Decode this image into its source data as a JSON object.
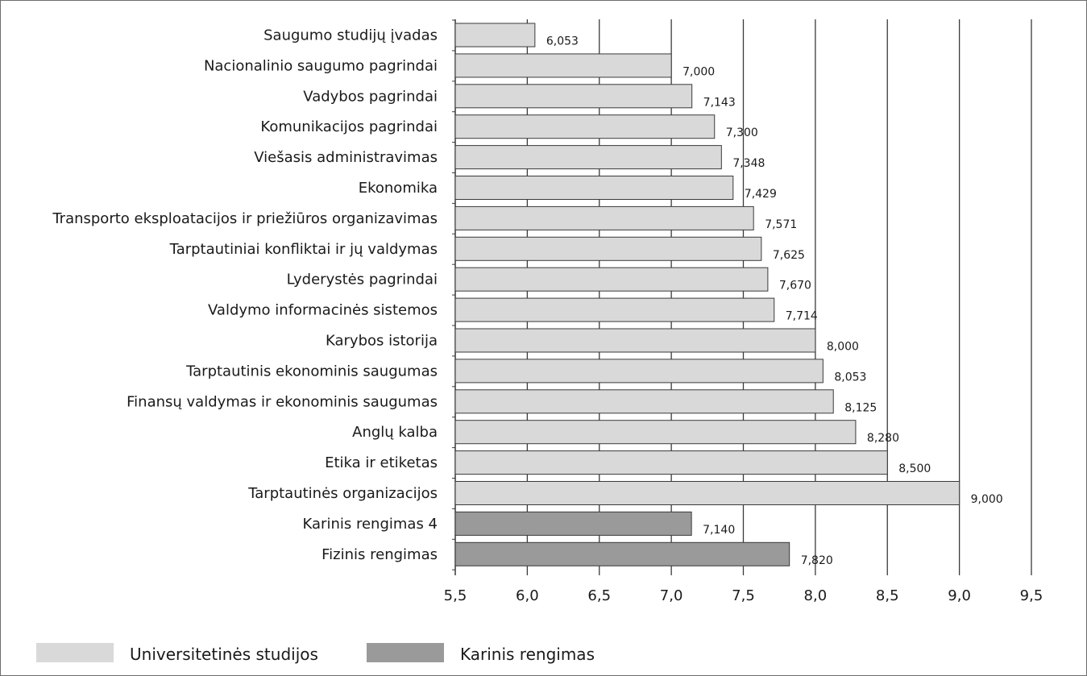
{
  "chart_data": {
    "type": "bar",
    "orientation": "horizontal",
    "title": "",
    "xlabel": "",
    "ylabel": "",
    "xlim": [
      5.5,
      9.5
    ],
    "xticks": [
      "5,5",
      "6,0",
      "6,5",
      "7,0",
      "7,5",
      "8,0",
      "8,5",
      "9,0",
      "9,5"
    ],
    "grid": "vertical",
    "legend_position": "bottom-left",
    "categories": [
      "Saugumo studijų įvadas",
      "Nacionalinio saugumo pagrindai",
      "Vadybos pagrindai",
      "Komunikacijos pagrindai",
      "Viešasis administravimas",
      "Ekonomika",
      "Transporto eksploatacijos ir priežiūros organizavimas",
      "Tarptautiniai konfliktai ir jų valdymas",
      "Lyderystės pagrindai",
      "Valdymo informacinės sistemos",
      "Karybos istorija",
      "Tarptautinis ekonominis saugumas",
      "Finansų valdymas ir ekonominis saugumas",
      "Anglų kalba",
      "Etika ir etiketas",
      "Tarptautinės organizacijos",
      "Karinis rengimas 4",
      "Fizinis rengimas"
    ],
    "values": [
      6.053,
      7.0,
      7.143,
      7.3,
      7.348,
      7.429,
      7.571,
      7.625,
      7.67,
      7.714,
      8.0,
      8.053,
      8.125,
      8.28,
      8.5,
      9.0,
      7.14,
      7.82
    ],
    "value_labels": [
      "6,053",
      "7,000",
      "7,143",
      "7,300",
      "7,348",
      "7,429",
      "7,571",
      "7,625",
      "7,670",
      "7,714",
      "8,000",
      "8,053",
      "8,125",
      "8,280",
      "8,500",
      "9,000",
      "7,140",
      "7,820"
    ],
    "groups": [
      "Universitetinės studijos",
      "Universitetinės studijos",
      "Universitetinės studijos",
      "Universitetinės studijos",
      "Universitetinės studijos",
      "Universitetinės studijos",
      "Universitetinės studijos",
      "Universitetinės studijos",
      "Universitetinės studijos",
      "Universitetinės studijos",
      "Universitetinės studijos",
      "Universitetinės studijos",
      "Universitetinės studijos",
      "Universitetinės studijos",
      "Universitetinės studijos",
      "Universitetinės studijos",
      "Karinis rengimas",
      "Karinis rengimas"
    ],
    "legend": [
      {
        "name": "Universitetinės studijos",
        "color": "#d9d9d9"
      },
      {
        "name": "Karinis rengimas",
        "color": "#9a9a9a"
      }
    ],
    "colors": {
      "university": "#d9d9d9",
      "military": "#9a9a9a",
      "bar_outline": "#3a3a3a",
      "grid": "#3a3a3a",
      "frame": "#6d6d6d"
    }
  }
}
